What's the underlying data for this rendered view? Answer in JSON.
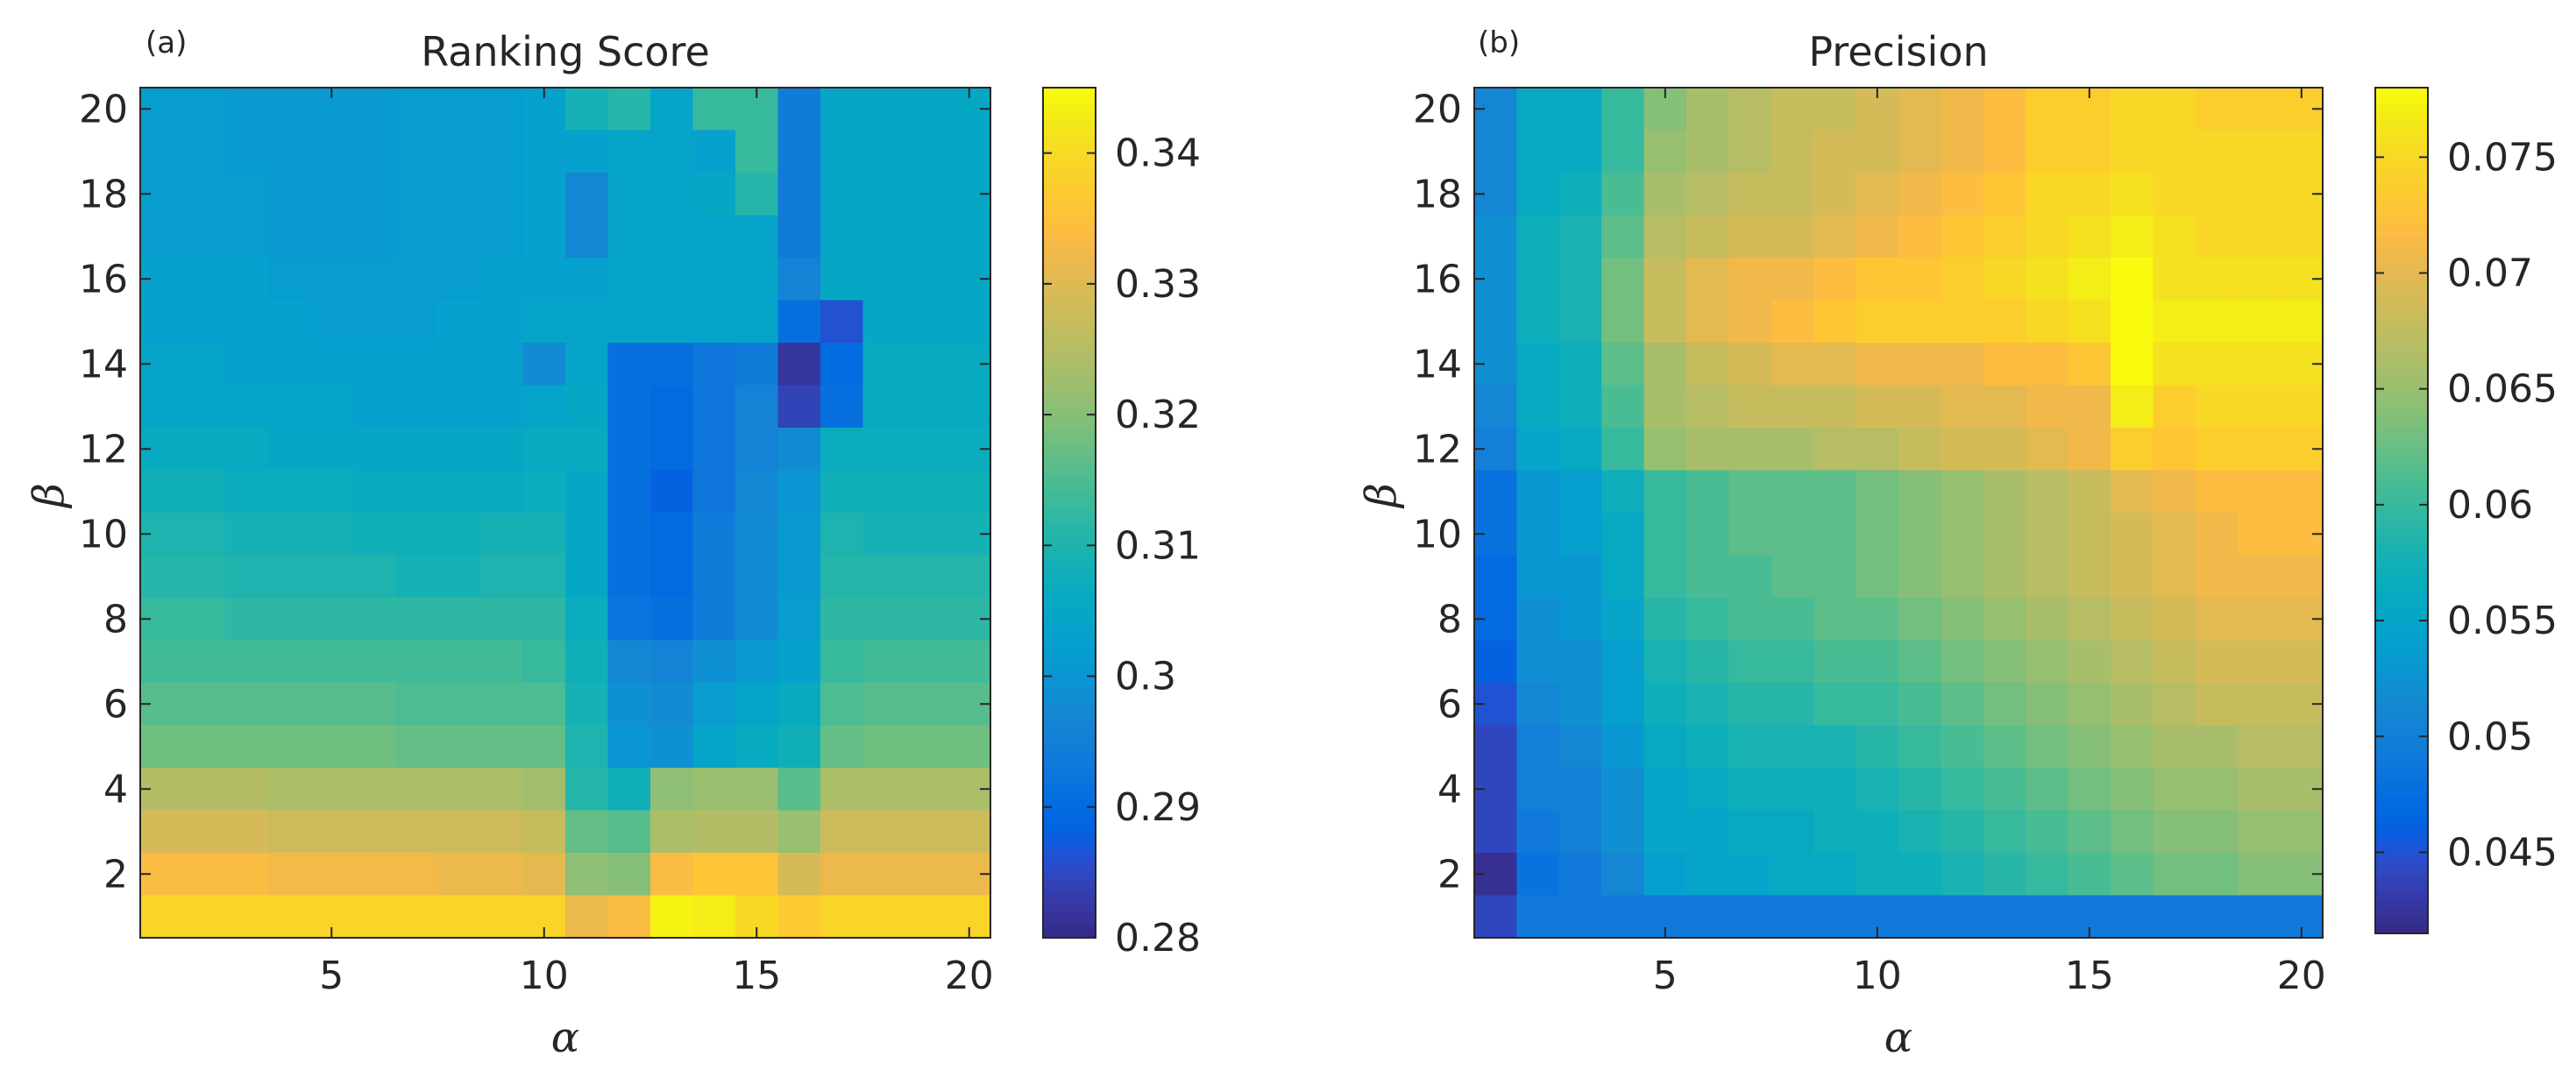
{
  "chart_data": [
    {
      "type": "heatmap",
      "panel_label": "(a)",
      "title": "Ranking Score",
      "xlabel": "α",
      "ylabel": "β",
      "xlim": [
        0.5,
        20.5
      ],
      "ylim": [
        0.5,
        20.5
      ],
      "x_ticks": [
        5,
        10,
        15,
        20
      ],
      "y_ticks": [
        2,
        4,
        6,
        8,
        10,
        12,
        14,
        16,
        18,
        20
      ],
      "colorbar": {
        "min": 0.28,
        "max": 0.345,
        "ticks": [
          0.28,
          0.29,
          0.3,
          0.31,
          0.32,
          0.33,
          0.34
        ],
        "tick_labels": [
          "0.28",
          "0.29",
          "0.3",
          "0.31",
          "0.32",
          "0.33",
          "0.34"
        ]
      },
      "row_order": "beta 20 down to 1",
      "x": [
        1,
        2,
        3,
        4,
        5,
        6,
        7,
        8,
        9,
        10,
        11,
        12,
        13,
        14,
        15,
        16,
        17,
        18,
        19,
        20
      ],
      "y": [
        20,
        19,
        18,
        17,
        16,
        15,
        14,
        13,
        12,
        11,
        10,
        9,
        8,
        7,
        6,
        5,
        4,
        3,
        2,
        1
      ],
      "values": [
        [
          0.302,
          0.302,
          0.301,
          0.301,
          0.301,
          0.301,
          0.302,
          0.302,
          0.302,
          0.303,
          0.309,
          0.311,
          0.304,
          0.313,
          0.313,
          0.294,
          0.305,
          0.305,
          0.305,
          0.305
        ],
        [
          0.302,
          0.302,
          0.301,
          0.301,
          0.301,
          0.301,
          0.302,
          0.302,
          0.302,
          0.303,
          0.303,
          0.304,
          0.304,
          0.303,
          0.313,
          0.294,
          0.305,
          0.305,
          0.305,
          0.305
        ],
        [
          0.302,
          0.302,
          0.302,
          0.301,
          0.301,
          0.301,
          0.302,
          0.302,
          0.302,
          0.303,
          0.297,
          0.304,
          0.304,
          0.305,
          0.311,
          0.294,
          0.305,
          0.305,
          0.305,
          0.305
        ],
        [
          0.302,
          0.302,
          0.302,
          0.301,
          0.301,
          0.301,
          0.302,
          0.302,
          0.302,
          0.303,
          0.297,
          0.304,
          0.304,
          0.304,
          0.304,
          0.294,
          0.305,
          0.305,
          0.305,
          0.305
        ],
        [
          0.303,
          0.303,
          0.303,
          0.302,
          0.302,
          0.302,
          0.302,
          0.302,
          0.303,
          0.303,
          0.303,
          0.304,
          0.304,
          0.304,
          0.304,
          0.296,
          0.305,
          0.305,
          0.305,
          0.305
        ],
        [
          0.303,
          0.303,
          0.303,
          0.303,
          0.302,
          0.302,
          0.302,
          0.303,
          0.303,
          0.304,
          0.304,
          0.304,
          0.304,
          0.304,
          0.304,
          0.291,
          0.286,
          0.305,
          0.305,
          0.305
        ],
        [
          0.304,
          0.304,
          0.303,
          0.303,
          0.303,
          0.303,
          0.303,
          0.303,
          0.303,
          0.298,
          0.304,
          0.291,
          0.291,
          0.293,
          0.294,
          0.282,
          0.29,
          0.306,
          0.306,
          0.306
        ],
        [
          0.304,
          0.304,
          0.304,
          0.304,
          0.304,
          0.303,
          0.303,
          0.303,
          0.303,
          0.304,
          0.305,
          0.291,
          0.29,
          0.293,
          0.296,
          0.284,
          0.291,
          0.306,
          0.306,
          0.306
        ],
        [
          0.306,
          0.306,
          0.306,
          0.305,
          0.305,
          0.305,
          0.305,
          0.305,
          0.305,
          0.306,
          0.306,
          0.291,
          0.29,
          0.293,
          0.296,
          0.298,
          0.307,
          0.307,
          0.307,
          0.307
        ],
        [
          0.308,
          0.308,
          0.307,
          0.307,
          0.307,
          0.306,
          0.306,
          0.306,
          0.306,
          0.307,
          0.305,
          0.291,
          0.288,
          0.293,
          0.297,
          0.3,
          0.308,
          0.308,
          0.308,
          0.308
        ],
        [
          0.31,
          0.31,
          0.309,
          0.309,
          0.309,
          0.308,
          0.308,
          0.308,
          0.309,
          0.309,
          0.305,
          0.291,
          0.29,
          0.294,
          0.298,
          0.301,
          0.31,
          0.309,
          0.309,
          0.309
        ],
        [
          0.311,
          0.311,
          0.31,
          0.31,
          0.31,
          0.31,
          0.309,
          0.309,
          0.31,
          0.31,
          0.305,
          0.291,
          0.29,
          0.294,
          0.298,
          0.301,
          0.311,
          0.311,
          0.311,
          0.311
        ],
        [
          0.313,
          0.313,
          0.312,
          0.312,
          0.312,
          0.312,
          0.312,
          0.312,
          0.312,
          0.312,
          0.307,
          0.292,
          0.291,
          0.294,
          0.298,
          0.302,
          0.312,
          0.312,
          0.312,
          0.312
        ],
        [
          0.314,
          0.314,
          0.314,
          0.314,
          0.314,
          0.314,
          0.314,
          0.314,
          0.314,
          0.313,
          0.308,
          0.297,
          0.296,
          0.299,
          0.301,
          0.303,
          0.313,
          0.314,
          0.314,
          0.314
        ],
        [
          0.316,
          0.316,
          0.316,
          0.316,
          0.316,
          0.316,
          0.315,
          0.315,
          0.315,
          0.315,
          0.309,
          0.299,
          0.298,
          0.302,
          0.304,
          0.306,
          0.315,
          0.316,
          0.316,
          0.316
        ],
        [
          0.318,
          0.318,
          0.318,
          0.318,
          0.318,
          0.318,
          0.317,
          0.317,
          0.317,
          0.317,
          0.31,
          0.3,
          0.299,
          0.304,
          0.306,
          0.308,
          0.317,
          0.318,
          0.318,
          0.318
        ],
        [
          0.325,
          0.325,
          0.325,
          0.324,
          0.324,
          0.324,
          0.324,
          0.324,
          0.324,
          0.323,
          0.311,
          0.308,
          0.321,
          0.322,
          0.322,
          0.316,
          0.324,
          0.324,
          0.324,
          0.324
        ],
        [
          0.329,
          0.329,
          0.329,
          0.328,
          0.328,
          0.328,
          0.328,
          0.328,
          0.328,
          0.327,
          0.317,
          0.316,
          0.324,
          0.325,
          0.325,
          0.322,
          0.328,
          0.328,
          0.328,
          0.328
        ],
        [
          0.334,
          0.334,
          0.334,
          0.333,
          0.333,
          0.333,
          0.333,
          0.332,
          0.332,
          0.331,
          0.321,
          0.32,
          0.334,
          0.336,
          0.336,
          0.329,
          0.332,
          0.332,
          0.332,
          0.332
        ],
        [
          0.339,
          0.339,
          0.339,
          0.339,
          0.339,
          0.339,
          0.339,
          0.339,
          0.339,
          0.339,
          0.332,
          0.334,
          0.344,
          0.343,
          0.34,
          0.337,
          0.339,
          0.339,
          0.339,
          0.339
        ]
      ]
    },
    {
      "type": "heatmap",
      "panel_label": "(b)",
      "title": "Precision",
      "xlabel": "α",
      "ylabel": "β",
      "xlim": [
        0.5,
        20.5
      ],
      "ylim": [
        0.5,
        20.5
      ],
      "x_ticks": [
        5,
        10,
        15,
        20
      ],
      "y_ticks": [
        2,
        4,
        6,
        8,
        10,
        12,
        14,
        16,
        18,
        20
      ],
      "colorbar": {
        "min": 0.0415,
        "max": 0.078,
        "ticks": [
          0.045,
          0.05,
          0.055,
          0.06,
          0.065,
          0.07,
          0.075
        ],
        "tick_labels": [
          "0.045",
          "0.05",
          "0.055",
          "0.06",
          "0.065",
          "0.07",
          "0.075"
        ]
      },
      "row_order": "beta 20 down to 1",
      "x": [
        1,
        2,
        3,
        4,
        5,
        6,
        7,
        8,
        9,
        10,
        11,
        12,
        13,
        14,
        15,
        16,
        17,
        18,
        19,
        20
      ],
      "y": [
        20,
        19,
        18,
        17,
        16,
        15,
        14,
        13,
        12,
        11,
        10,
        9,
        8,
        7,
        6,
        5,
        4,
        3,
        2,
        1
      ],
      "values": [
        [
          0.051,
          0.056,
          0.056,
          0.06,
          0.064,
          0.066,
          0.067,
          0.068,
          0.068,
          0.069,
          0.07,
          0.071,
          0.072,
          0.074,
          0.074,
          0.075,
          0.075,
          0.074,
          0.074,
          0.074
        ],
        [
          0.051,
          0.056,
          0.056,
          0.06,
          0.065,
          0.066,
          0.067,
          0.068,
          0.069,
          0.069,
          0.07,
          0.071,
          0.072,
          0.074,
          0.074,
          0.075,
          0.075,
          0.075,
          0.075,
          0.075
        ],
        [
          0.051,
          0.056,
          0.057,
          0.061,
          0.066,
          0.067,
          0.068,
          0.068,
          0.069,
          0.07,
          0.071,
          0.072,
          0.073,
          0.075,
          0.075,
          0.076,
          0.075,
          0.075,
          0.075,
          0.075
        ],
        [
          0.052,
          0.057,
          0.058,
          0.062,
          0.067,
          0.068,
          0.069,
          0.069,
          0.07,
          0.071,
          0.072,
          0.073,
          0.074,
          0.075,
          0.076,
          0.077,
          0.076,
          0.075,
          0.075,
          0.075
        ],
        [
          0.052,
          0.057,
          0.058,
          0.063,
          0.068,
          0.07,
          0.071,
          0.071,
          0.072,
          0.073,
          0.073,
          0.074,
          0.075,
          0.076,
          0.077,
          0.078,
          0.076,
          0.076,
          0.076,
          0.076
        ],
        [
          0.052,
          0.057,
          0.058,
          0.063,
          0.068,
          0.07,
          0.071,
          0.072,
          0.073,
          0.074,
          0.074,
          0.074,
          0.074,
          0.075,
          0.076,
          0.078,
          0.077,
          0.077,
          0.077,
          0.077
        ],
        [
          0.052,
          0.056,
          0.057,
          0.062,
          0.066,
          0.068,
          0.069,
          0.07,
          0.07,
          0.071,
          0.071,
          0.071,
          0.072,
          0.072,
          0.073,
          0.078,
          0.076,
          0.076,
          0.076,
          0.076
        ],
        [
          0.051,
          0.056,
          0.057,
          0.061,
          0.066,
          0.067,
          0.068,
          0.068,
          0.068,
          0.069,
          0.069,
          0.07,
          0.07,
          0.071,
          0.071,
          0.077,
          0.074,
          0.075,
          0.075,
          0.075
        ],
        [
          0.05,
          0.055,
          0.056,
          0.06,
          0.065,
          0.066,
          0.066,
          0.066,
          0.067,
          0.067,
          0.068,
          0.069,
          0.069,
          0.07,
          0.071,
          0.074,
          0.073,
          0.074,
          0.074,
          0.074
        ],
        [
          0.048,
          0.053,
          0.054,
          0.057,
          0.06,
          0.061,
          0.062,
          0.062,
          0.062,
          0.063,
          0.064,
          0.065,
          0.066,
          0.067,
          0.068,
          0.07,
          0.071,
          0.072,
          0.072,
          0.072
        ],
        [
          0.048,
          0.053,
          0.054,
          0.056,
          0.06,
          0.061,
          0.062,
          0.062,
          0.062,
          0.063,
          0.064,
          0.065,
          0.066,
          0.067,
          0.068,
          0.069,
          0.07,
          0.071,
          0.072,
          0.072
        ],
        [
          0.047,
          0.053,
          0.053,
          0.056,
          0.06,
          0.061,
          0.061,
          0.062,
          0.062,
          0.063,
          0.064,
          0.065,
          0.066,
          0.067,
          0.068,
          0.069,
          0.07,
          0.071,
          0.071,
          0.071
        ],
        [
          0.047,
          0.052,
          0.053,
          0.055,
          0.059,
          0.06,
          0.061,
          0.061,
          0.062,
          0.062,
          0.063,
          0.064,
          0.065,
          0.066,
          0.067,
          0.068,
          0.069,
          0.07,
          0.07,
          0.07
        ],
        [
          0.046,
          0.052,
          0.052,
          0.054,
          0.058,
          0.059,
          0.06,
          0.06,
          0.061,
          0.061,
          0.062,
          0.063,
          0.064,
          0.065,
          0.066,
          0.067,
          0.068,
          0.069,
          0.069,
          0.069
        ],
        [
          0.045,
          0.051,
          0.052,
          0.054,
          0.057,
          0.058,
          0.059,
          0.059,
          0.06,
          0.06,
          0.061,
          0.062,
          0.063,
          0.064,
          0.065,
          0.066,
          0.067,
          0.068,
          0.068,
          0.068
        ],
        [
          0.044,
          0.05,
          0.051,
          0.053,
          0.056,
          0.057,
          0.058,
          0.058,
          0.058,
          0.059,
          0.06,
          0.061,
          0.062,
          0.063,
          0.064,
          0.065,
          0.066,
          0.066,
          0.067,
          0.067
        ],
        [
          0.044,
          0.05,
          0.05,
          0.052,
          0.055,
          0.056,
          0.057,
          0.057,
          0.057,
          0.058,
          0.059,
          0.06,
          0.061,
          0.062,
          0.063,
          0.064,
          0.065,
          0.065,
          0.066,
          0.066
        ],
        [
          0.044,
          0.049,
          0.05,
          0.052,
          0.055,
          0.055,
          0.056,
          0.056,
          0.057,
          0.057,
          0.058,
          0.059,
          0.06,
          0.061,
          0.062,
          0.063,
          0.064,
          0.064,
          0.065,
          0.065
        ],
        [
          0.042,
          0.048,
          0.049,
          0.051,
          0.054,
          0.055,
          0.055,
          0.056,
          0.056,
          0.057,
          0.057,
          0.058,
          0.059,
          0.06,
          0.061,
          0.062,
          0.063,
          0.063,
          0.064,
          0.064
        ],
        [
          0.044,
          0.049,
          0.049,
          0.049,
          0.049,
          0.049,
          0.049,
          0.049,
          0.049,
          0.049,
          0.049,
          0.049,
          0.049,
          0.049,
          0.049,
          0.049,
          0.049,
          0.049,
          0.049,
          0.049
        ]
      ]
    }
  ]
}
